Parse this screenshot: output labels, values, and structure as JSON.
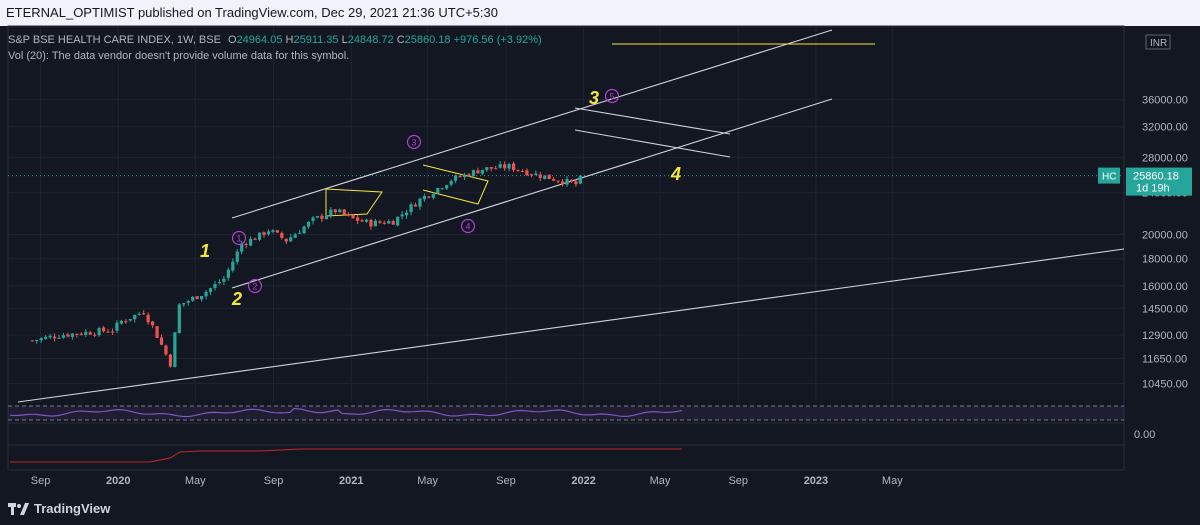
{
  "header": {
    "publisher_line": "ETERNAL_OPTIMIST published on TradingView.com, Dec 29, 2021 21:36 UTC+5:30"
  },
  "legend": {
    "symbol": "S&P BSE HEALTH CARE INDEX, 1W, BSE",
    "o_key": "O",
    "o_val": "24964.05",
    "h_key": "H",
    "h_val": "25911.35",
    "l_key": "L",
    "l_val": "24848.72",
    "c_key": "C",
    "c_val": "25860.18",
    "change": "+976.56 (+3.92%)",
    "volume_note": "Vol (20): The data vendor doesn't provide volume data for this symbol."
  },
  "price_axis": {
    "currency": "INR",
    "ticks": [
      "36000.00",
      "32000.00",
      "28000.00",
      "24000.00",
      "20000.00",
      "18000.00",
      "16000.00",
      "14500.00",
      "12900.00",
      "11650.00",
      "10450.00"
    ],
    "last_price": "25860.18",
    "countdown": "1d 19h",
    "symbol_tag": "HC",
    "osc_tick": "0.00"
  },
  "time_axis": {
    "labels": [
      "Sep",
      "2020",
      "May",
      "Sep",
      "2021",
      "May",
      "Sep",
      "2022",
      "May",
      "Sep",
      "2023",
      "May"
    ]
  },
  "wave_labels": {
    "primary": [
      "1",
      "2",
      "3",
      "4"
    ],
    "minor": [
      "1",
      "2",
      "3",
      "4",
      "5"
    ]
  },
  "footer": {
    "brand": "TradingView"
  },
  "colors": {
    "bg": "#131722",
    "up": "#26a69a",
    "down": "#ef5350",
    "wave_yellow": "#f7e63c",
    "wave_purple": "#b23fd6",
    "trend_white": "#d1d4dc",
    "rsi": "#7e57c2",
    "osc_red": "#c62828"
  },
  "chart_data": {
    "type": "candlestick",
    "timeframe": "1W",
    "scale": "log",
    "y_axis_range": [
      9800,
      37000
    ],
    "x_range": [
      "2019-08-19",
      "2023-07-10"
    ],
    "last_candle": {
      "date": "2021-12-27",
      "open": 24964.05,
      "high": 25911.35,
      "low": 24848.72,
      "close": 25860.18
    },
    "weekly_closes": [
      {
        "date": "2019-08-19",
        "close": 12600
      },
      {
        "date": "2019-09-30",
        "close": 12900
      },
      {
        "date": "2019-11-11",
        "close": 13050
      },
      {
        "date": "2019-12-23",
        "close": 13200
      },
      {
        "date": "2020-01-06",
        "close": 13700
      },
      {
        "date": "2020-02-10",
        "close": 14300
      },
      {
        "date": "2020-02-24",
        "close": 13400
      },
      {
        "date": "2020-03-23",
        "close": 11400
      },
      {
        "date": "2020-04-06",
        "close": 14700
      },
      {
        "date": "2020-05-18",
        "close": 15600
      },
      {
        "date": "2020-06-15",
        "close": 16500
      },
      {
        "date": "2020-07-13",
        "close": 19200
      },
      {
        "date": "2020-08-10",
        "close": 19900
      },
      {
        "date": "2020-08-24",
        "close": 20400
      },
      {
        "date": "2020-09-21",
        "close": 19500
      },
      {
        "date": "2020-11-02",
        "close": 21300
      },
      {
        "date": "2020-12-07",
        "close": 22200
      },
      {
        "date": "2021-01-04",
        "close": 21400
      },
      {
        "date": "2021-02-01",
        "close": 21000
      },
      {
        "date": "2021-03-08",
        "close": 21200
      },
      {
        "date": "2021-04-19",
        "close": 23300
      },
      {
        "date": "2021-06-07",
        "close": 25400
      },
      {
        "date": "2021-07-26",
        "close": 26600
      },
      {
        "date": "2021-09-06",
        "close": 26900
      },
      {
        "date": "2021-10-18",
        "close": 26000
      },
      {
        "date": "2021-12-20",
        "close": 24900
      },
      {
        "date": "2021-12-27",
        "close": 25860.18
      }
    ]
  }
}
